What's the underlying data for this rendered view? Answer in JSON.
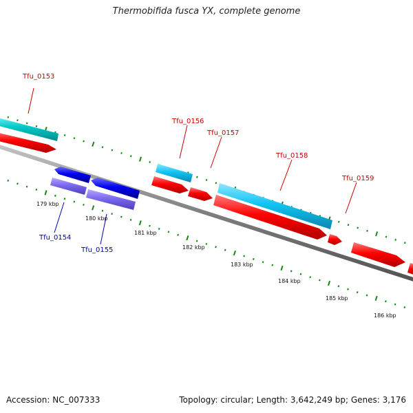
{
  "title": "Thermobifida fusca YX, complete genome",
  "footer": {
    "accession": "Accession: NC_007333",
    "summary": "Topology: circular; Length: 3,642,249 bp; Genes: 3,176"
  },
  "colors": {
    "forward_gene_label": "#cc0000",
    "reverse_gene_label": "#0000aa",
    "cds_forward": "#ff0000",
    "cds_reverse": "#0000ee",
    "gene_forward_light": "#00c8c8",
    "gene_forward_sky": "#11c4f2",
    "gene_reverse": "#7b68ee",
    "backbone": "#808080",
    "ticks": "#118811"
  },
  "scale_labels": [
    "179 kbp",
    "180 kbp",
    "181 kbp",
    "182 kbp",
    "183 kbp",
    "184 kbp",
    "185 kbp",
    "186 kbp"
  ],
  "gene_labels": [
    {
      "name": "Tfu_0153",
      "strand": "forward"
    },
    {
      "name": "Tfu_0154",
      "strand": "reverse"
    },
    {
      "name": "Tfu_0155",
      "strand": "reverse"
    },
    {
      "name": "Tfu_0156",
      "strand": "forward"
    },
    {
      "name": "Tfu_0157",
      "strand": "forward"
    },
    {
      "name": "Tfu_0158",
      "strand": "forward"
    },
    {
      "name": "Tfu_0159",
      "strand": "forward"
    }
  ]
}
